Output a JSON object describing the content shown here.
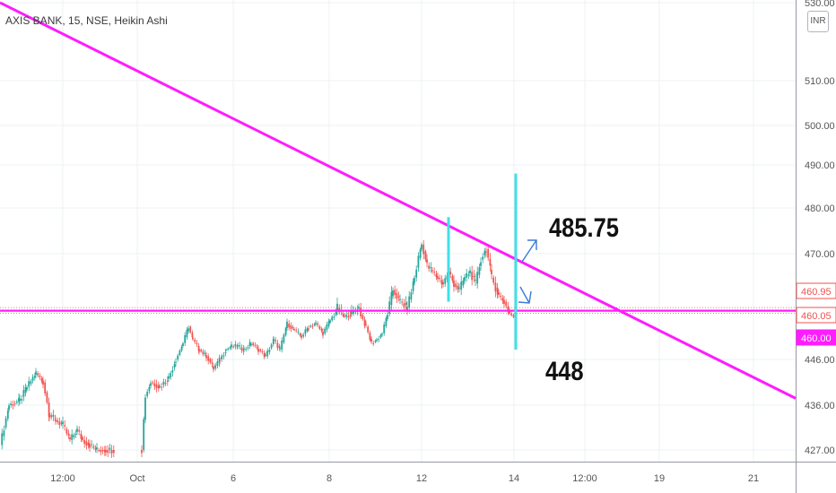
{
  "header": {
    "symbol_title": "AXIS BANK, 15, NSE, Heikin Ashi",
    "currency_badge": "INR"
  },
  "annotations": {
    "upper_target": "485.75",
    "lower_target": "448"
  },
  "colors": {
    "up": "#26a69a",
    "down": "#ef5350",
    "trendline": "#ff1cff",
    "marker": "#3fe0e8",
    "arrow": "#3a7bd5",
    "grid": "#eef0f3"
  },
  "price_badges": [
    {
      "text": "460.95",
      "bg": "#ffffff",
      "color": "#ef5350",
      "border": "#ef5350"
    },
    {
      "text": "460.05",
      "bg": "#ffffff",
      "color": "#ef5350",
      "border": "#ef5350"
    },
    {
      "text": "460.00",
      "bg": "#ff1cff",
      "color": "#ffffff",
      "border": "#ff1cff"
    }
  ],
  "chart_data": {
    "type": "candlestick",
    "title": "AXIS BANK, 15, NSE, Heikin Ashi",
    "y_unit": "INR",
    "yticks": [
      "530.00",
      "510.00",
      "500.00",
      "490.00",
      "480.00",
      "470.00",
      "446.00",
      "436.00",
      "427.00"
    ],
    "xticks": [
      "12:00",
      "Oct",
      "6",
      "8",
      "12",
      "14",
      "12:00",
      "19",
      "21"
    ],
    "grid": true,
    "trendlines": [
      {
        "name": "descending resistance",
        "points": [
          [
            0,
            531
          ],
          [
            887,
            437.5
          ]
        ]
      },
      {
        "name": "horizontal support",
        "price": 460.5
      }
    ],
    "ohlc_path": [
      [
        0,
        428
      ],
      [
        10,
        436
      ],
      [
        22,
        437
      ],
      [
        30,
        440
      ],
      [
        40,
        443
      ],
      [
        48,
        441
      ],
      [
        55,
        434
      ],
      [
        62,
        433
      ],
      [
        70,
        432
      ],
      [
        78,
        429
      ],
      [
        86,
        431
      ],
      [
        92,
        429
      ],
      [
        100,
        428
      ],
      [
        108,
        427
      ],
      [
        118,
        427
      ],
      [
        128,
        427
      ],
      [
        158,
        427
      ],
      [
        162,
        438
      ],
      [
        168,
        441
      ],
      [
        178,
        440
      ],
      [
        188,
        442
      ],
      [
        196,
        446
      ],
      [
        204,
        451
      ],
      [
        210,
        456
      ],
      [
        215,
        452
      ],
      [
        222,
        449
      ],
      [
        230,
        447
      ],
      [
        238,
        444
      ],
      [
        245,
        446
      ],
      [
        252,
        449
      ],
      [
        258,
        450
      ],
      [
        265,
        450
      ],
      [
        272,
        449
      ],
      [
        280,
        451
      ],
      [
        288,
        449
      ],
      [
        296,
        447
      ],
      [
        305,
        452
      ],
      [
        312,
        449
      ],
      [
        320,
        457
      ],
      [
        328,
        455
      ],
      [
        336,
        453
      ],
      [
        344,
        456
      ],
      [
        352,
        457
      ],
      [
        360,
        454
      ],
      [
        368,
        458
      ],
      [
        376,
        461
      ],
      [
        384,
        459
      ],
      [
        392,
        460
      ],
      [
        400,
        461
      ],
      [
        408,
        456
      ],
      [
        414,
        451
      ],
      [
        420,
        452
      ],
      [
        426,
        454
      ],
      [
        432,
        460
      ],
      [
        438,
        464
      ],
      [
        446,
        462
      ],
      [
        454,
        461
      ],
      [
        462,
        466
      ],
      [
        470,
        472
      ],
      [
        476,
        468
      ],
      [
        482,
        467
      ],
      [
        488,
        466
      ],
      [
        494,
        465
      ],
      [
        500,
        467
      ],
      [
        506,
        465
      ],
      [
        512,
        464
      ],
      [
        518,
        466
      ],
      [
        524,
        467
      ],
      [
        530,
        465
      ],
      [
        536,
        469
      ],
      [
        542,
        471
      ],
      [
        548,
        466
      ],
      [
        556,
        463
      ],
      [
        562,
        462
      ],
      [
        568,
        460
      ],
      [
        573,
        459
      ]
    ],
    "markers": [
      {
        "type": "vertical",
        "x": 500,
        "y_range": [
          462,
          478
        ]
      },
      {
        "type": "vertical",
        "x": 575,
        "y_range": [
          449,
          488
        ]
      }
    ]
  }
}
